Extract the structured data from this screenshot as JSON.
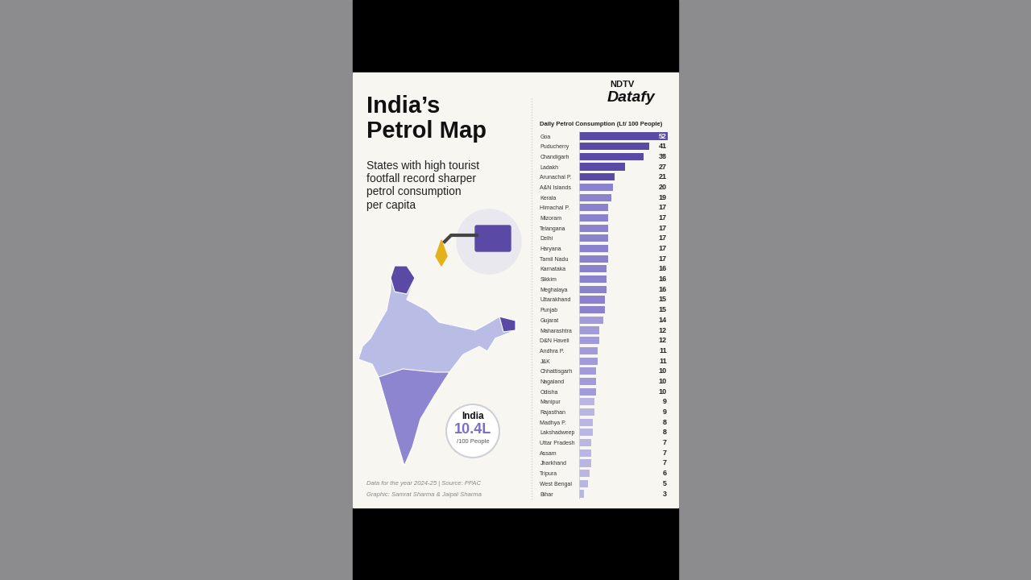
{
  "header": {
    "brand": "NDTV",
    "product": "Datafy",
    "title": "India’s\nPetrol Map",
    "subtitle": "States with high tourist\nfootfall record sharper\npetrol consumption\nper capita"
  },
  "india_average": {
    "name": "India",
    "value": 10.4,
    "label": "10.4L",
    "unit": "/100 People"
  },
  "footer": {
    "data_note": "Data for the year 2024-25 | Source: PPAC",
    "credit": "Graphic: Samrat Sharma & Jaipal Sharma"
  },
  "chart_data": {
    "type": "bar",
    "orientation": "horizontal",
    "title": "Daily Petrol Consumption (Lt/ 100 People)",
    "categories": [
      "Goa",
      "Puducherry",
      "Chandigarh",
      "Ladakh",
      "Arunachal P.",
      "A&N Islands",
      "Kerala",
      "Himachal P.",
      "Mizoram",
      "Telangana",
      "Delhi",
      "Haryana",
      "Tamil Nadu",
      "Karnataka",
      "Sikkim",
      "Meghalaya",
      "Uttarakhand",
      "Punjab",
      "Gujarat",
      "Maharashtra",
      "D&N Haveli",
      "Andhra P.",
      "J&K",
      "Chhattisgarh",
      "Nagaland",
      "Odisha",
      "Manipur",
      "Rajasthan",
      "Madhya P.",
      "Lakshadweep",
      "Uttar Pradesh",
      "Assam",
      "Jharkhand",
      "Tripura",
      "West Bengal",
      "Bihar"
    ],
    "values": [
      52,
      41,
      38,
      27,
      21,
      20,
      19,
      17,
      17,
      17,
      17,
      17,
      17,
      16,
      16,
      16,
      15,
      15,
      14,
      12,
      12,
      11,
      11,
      10,
      10,
      10,
      9,
      9,
      8,
      8,
      7,
      7,
      7,
      6,
      5,
      3
    ],
    "colors": [
      "#5a4aa6",
      "#5a4aa6",
      "#5a4aa6",
      "#5a4aa6",
      "#5a4aa6",
      "#8a82cc",
      "#8a82cc",
      "#8a82cc",
      "#8a82cc",
      "#8a82cc",
      "#8a82cc",
      "#8a82cc",
      "#8a82cc",
      "#8a82cc",
      "#8a82cc",
      "#8a82cc",
      "#8a82cc",
      "#8a82cc",
      "#a19bd9",
      "#a19bd9",
      "#a19bd9",
      "#a19bd9",
      "#a19bd9",
      "#a19bd9",
      "#a19bd9",
      "#a19bd9",
      "#bab6e4",
      "#bab6e4",
      "#bab6e4",
      "#bab6e4",
      "#bab6e4",
      "#bab6e4",
      "#bab6e4",
      "#bab6e4",
      "#bab6e4",
      "#bab6e4"
    ],
    "xlim": [
      0,
      52
    ],
    "data_labels": true,
    "tick_labels": "y",
    "grid": false
  }
}
